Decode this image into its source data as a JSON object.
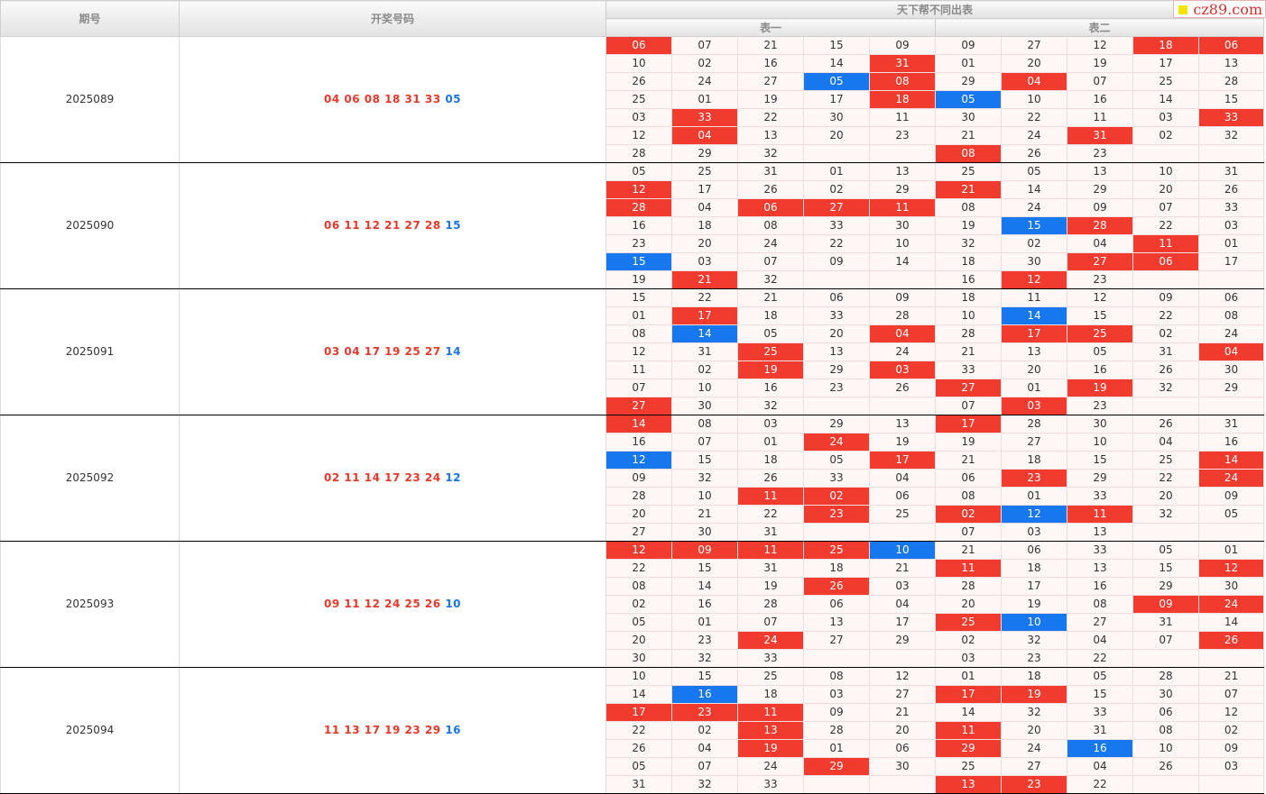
{
  "header": {
    "period": "期号",
    "numbers": "开奖号码",
    "group": "天下帮不同出表",
    "table1": "表一",
    "table2": "表二"
  },
  "logo": {
    "text": "cz89.com"
  },
  "colors": {
    "red": "#f23b2f",
    "blue": "#1677ef",
    "redText": "#e8382c",
    "blueText": "#1a74e8"
  },
  "blocks": [
    {
      "period": "2025089",
      "reds": [
        "04",
        "06",
        "08",
        "18",
        "31",
        "33"
      ],
      "blue": "05",
      "rows": [
        [
          "06",
          "07",
          "21",
          "15",
          "09",
          "09",
          "27",
          "12",
          "18",
          "06"
        ],
        [
          "10",
          "02",
          "16",
          "14",
          "31",
          "01",
          "20",
          "19",
          "17",
          "13"
        ],
        [
          "26",
          "24",
          "27",
          "05",
          "08",
          "29",
          "04",
          "07",
          "25",
          "28"
        ],
        [
          "25",
          "01",
          "19",
          "17",
          "18",
          "05",
          "10",
          "16",
          "14",
          "15"
        ],
        [
          "03",
          "33",
          "22",
          "30",
          "11",
          "30",
          "22",
          "11",
          "03",
          "33"
        ],
        [
          "12",
          "04",
          "13",
          "20",
          "23",
          "21",
          "24",
          "31",
          "02",
          "32"
        ],
        [
          "28",
          "29",
          "32",
          "",
          "",
          "08",
          "26",
          "23",
          "",
          ""
        ]
      ]
    },
    {
      "period": "2025090",
      "reds": [
        "06",
        "11",
        "12",
        "21",
        "27",
        "28"
      ],
      "blue": "15",
      "rows": [
        [
          "05",
          "25",
          "31",
          "01",
          "13",
          "25",
          "05",
          "13",
          "10",
          "31"
        ],
        [
          "12",
          "17",
          "26",
          "02",
          "29",
          "21",
          "14",
          "29",
          "20",
          "26"
        ],
        [
          "28",
          "04",
          "06",
          "27",
          "11",
          "08",
          "24",
          "09",
          "07",
          "33"
        ],
        [
          "16",
          "18",
          "08",
          "33",
          "30",
          "19",
          "15",
          "28",
          "22",
          "03"
        ],
        [
          "23",
          "20",
          "24",
          "22",
          "10",
          "32",
          "02",
          "04",
          "11",
          "01"
        ],
        [
          "15",
          "03",
          "07",
          "09",
          "14",
          "18",
          "30",
          "27",
          "06",
          "17"
        ],
        [
          "19",
          "21",
          "32",
          "",
          "",
          "16",
          "12",
          "23",
          "",
          ""
        ]
      ]
    },
    {
      "period": "2025091",
      "reds": [
        "03",
        "04",
        "17",
        "19",
        "25",
        "27"
      ],
      "blue": "14",
      "rows": [
        [
          "15",
          "22",
          "21",
          "06",
          "09",
          "18",
          "11",
          "12",
          "09",
          "06"
        ],
        [
          "01",
          "17",
          "18",
          "33",
          "28",
          "10",
          "14",
          "15",
          "22",
          "08"
        ],
        [
          "08",
          "14",
          "05",
          "20",
          "04",
          "28",
          "17",
          "25",
          "02",
          "24"
        ],
        [
          "12",
          "31",
          "25",
          "13",
          "24",
          "21",
          "13",
          "05",
          "31",
          "04"
        ],
        [
          "11",
          "02",
          "19",
          "29",
          "03",
          "33",
          "20",
          "16",
          "26",
          "30"
        ],
        [
          "07",
          "10",
          "16",
          "23",
          "26",
          "27",
          "01",
          "19",
          "32",
          "29"
        ],
        [
          "27",
          "30",
          "32",
          "",
          "",
          "07",
          "03",
          "23",
          "",
          ""
        ]
      ]
    },
    {
      "period": "2025092",
      "reds": [
        "02",
        "11",
        "14",
        "17",
        "23",
        "24"
      ],
      "blue": "12",
      "rows": [
        [
          "14",
          "08",
          "03",
          "29",
          "13",
          "17",
          "28",
          "30",
          "26",
          "31"
        ],
        [
          "16",
          "07",
          "01",
          "24",
          "19",
          "19",
          "27",
          "10",
          "04",
          "16"
        ],
        [
          "12",
          "15",
          "18",
          "05",
          "17",
          "21",
          "18",
          "15",
          "25",
          "14"
        ],
        [
          "09",
          "32",
          "26",
          "33",
          "04",
          "06",
          "23",
          "29",
          "22",
          "24"
        ],
        [
          "28",
          "10",
          "11",
          "02",
          "06",
          "08",
          "01",
          "33",
          "20",
          "09"
        ],
        [
          "20",
          "21",
          "22",
          "23",
          "25",
          "02",
          "12",
          "11",
          "32",
          "05"
        ],
        [
          "27",
          "30",
          "31",
          "",
          "",
          "07",
          "03",
          "13",
          "",
          ""
        ]
      ]
    },
    {
      "period": "2025093",
      "reds": [
        "09",
        "11",
        "12",
        "24",
        "25",
        "26"
      ],
      "blue": "10",
      "rows": [
        [
          "12",
          "09",
          "11",
          "25",
          "10",
          "21",
          "06",
          "33",
          "05",
          "01"
        ],
        [
          "22",
          "15",
          "31",
          "18",
          "21",
          "11",
          "18",
          "13",
          "15",
          "12"
        ],
        [
          "08",
          "14",
          "19",
          "26",
          "03",
          "28",
          "17",
          "16",
          "29",
          "30"
        ],
        [
          "02",
          "16",
          "28",
          "06",
          "04",
          "20",
          "19",
          "08",
          "09",
          "24"
        ],
        [
          "05",
          "01",
          "07",
          "13",
          "17",
          "25",
          "10",
          "27",
          "31",
          "14"
        ],
        [
          "20",
          "23",
          "24",
          "27",
          "29",
          "02",
          "32",
          "04",
          "07",
          "26"
        ],
        [
          "30",
          "32",
          "33",
          "",
          "",
          "03",
          "23",
          "22",
          "",
          ""
        ]
      ]
    },
    {
      "period": "2025094",
      "reds": [
        "11",
        "13",
        "17",
        "19",
        "23",
        "29"
      ],
      "blue": "16",
      "rows": [
        [
          "10",
          "15",
          "25",
          "08",
          "12",
          "01",
          "18",
          "05",
          "28",
          "21"
        ],
        [
          "14",
          "16",
          "18",
          "03",
          "27",
          "17",
          "19",
          "15",
          "30",
          "07"
        ],
        [
          "17",
          "23",
          "11",
          "09",
          "21",
          "14",
          "32",
          "33",
          "06",
          "12"
        ],
        [
          "22",
          "02",
          "13",
          "28",
          "20",
          "11",
          "20",
          "31",
          "08",
          "02"
        ],
        [
          "26",
          "04",
          "19",
          "01",
          "06",
          "29",
          "24",
          "16",
          "10",
          "09"
        ],
        [
          "05",
          "07",
          "24",
          "29",
          "30",
          "25",
          "27",
          "04",
          "26",
          "03"
        ],
        [
          "31",
          "32",
          "33",
          "",
          "",
          "13",
          "23",
          "22",
          "",
          ""
        ]
      ]
    }
  ]
}
